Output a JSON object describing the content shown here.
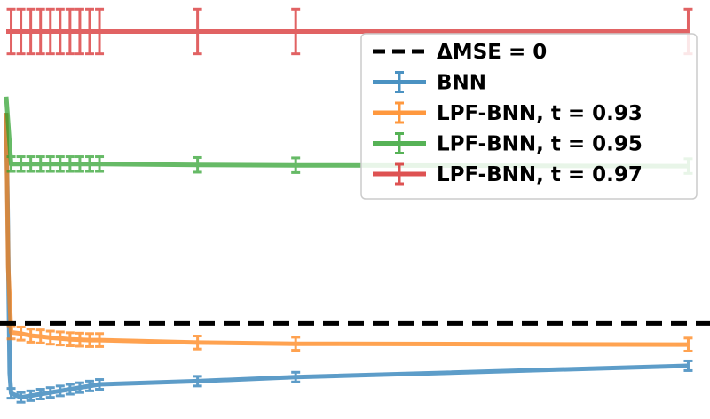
{
  "chart_data": {
    "type": "line",
    "x": [
      1,
      2,
      3,
      4,
      5,
      6,
      7,
      8,
      9,
      10,
      20,
      30,
      70
    ],
    "xlim": [
      0.5,
      70.5
    ],
    "ylim": [
      0,
      1000
    ],
    "grid": false,
    "axes_visible": false,
    "legend_location": "upper right",
    "reference_line": {
      "label": "ΔMSE = 0",
      "y": 222,
      "color": "#000000",
      "style": "dashed"
    },
    "series": [
      {
        "name": "BNN",
        "color": "#1f77b4",
        "prefix_points": [
          {
            "x": 0.5,
            "y": 740
          },
          {
            "x": 0.65,
            "y": 480
          },
          {
            "x": 0.85,
            "y": 100
          }
        ],
        "values": [
          50,
          40,
          44,
          48,
          52,
          56,
          60,
          64,
          68,
          72,
          80,
          90,
          118
        ],
        "errors": [
          12,
          12,
          12,
          12,
          12,
          12,
          12,
          12,
          12,
          12,
          12,
          12,
          12
        ]
      },
      {
        "name": "LPF-BNN, t = 0.93",
        "color": "#ff7f0e",
        "prefix_points": [
          {
            "x": 0.5,
            "y": 740
          },
          {
            "x": 0.7,
            "y": 360
          }
        ],
        "values": [
          200,
          197,
          192,
          190,
          187,
          185,
          183,
          182,
          181,
          181,
          175,
          172,
          170
        ],
        "errors": [
          16,
          16,
          16,
          16,
          16,
          16,
          16,
          16,
          16,
          16,
          16,
          16,
          16
        ]
      },
      {
        "name": "LPF-BNN, t = 0.95",
        "color": "#2ca02c",
        "prefix_points": [
          {
            "x": 0.5,
            "y": 780
          }
        ],
        "values": [
          614,
          614,
          614,
          614,
          614,
          614,
          614,
          614,
          614,
          614,
          612,
          611,
          609
        ],
        "errors": [
          18,
          18,
          18,
          18,
          18,
          18,
          18,
          18,
          18,
          18,
          18,
          18,
          18
        ]
      },
      {
        "name": "LPF-BNN, t = 0.97",
        "color": "#d62728",
        "prefix_points": [
          {
            "x": 0.5,
            "y": 940
          }
        ],
        "values": [
          940,
          940,
          940,
          940,
          940,
          940,
          940,
          940,
          940,
          940,
          940,
          940,
          940
        ],
        "errors": [
          55,
          55,
          55,
          55,
          55,
          55,
          55,
          55,
          55,
          55,
          55,
          55,
          55
        ]
      }
    ]
  }
}
